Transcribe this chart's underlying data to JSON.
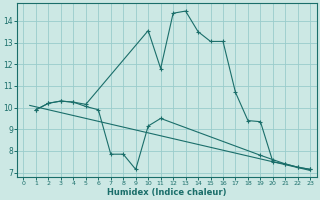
{
  "xlabel": "Humidex (Indice chaleur)",
  "bg_color": "#cce8e4",
  "grid_color": "#99cccc",
  "line_color": "#1a6e6a",
  "xlim": [
    -0.5,
    23.5
  ],
  "ylim": [
    6.8,
    14.8
  ],
  "yticks": [
    7,
    8,
    9,
    10,
    11,
    12,
    13,
    14
  ],
  "xticks": [
    0,
    1,
    2,
    3,
    4,
    5,
    6,
    7,
    8,
    9,
    10,
    11,
    12,
    13,
    14,
    15,
    16,
    17,
    18,
    19,
    20,
    21,
    22,
    23
  ],
  "curve1_x": [
    1,
    2,
    3,
    4,
    5,
    10,
    11,
    12,
    13,
    14,
    15,
    16,
    17,
    18,
    19,
    20,
    21,
    22,
    23
  ],
  "curve1_y": [
    9.9,
    10.2,
    10.3,
    10.25,
    10.15,
    13.55,
    11.8,
    14.35,
    14.45,
    13.5,
    13.05,
    13.05,
    10.7,
    9.4,
    9.35,
    7.5,
    7.4,
    7.25,
    7.15
  ],
  "curve2_x": [
    1,
    2,
    3,
    4,
    5,
    6,
    7,
    8,
    9,
    10,
    11,
    19,
    20,
    21,
    22,
    23
  ],
  "curve2_y": [
    9.9,
    10.2,
    10.3,
    10.25,
    10.05,
    9.9,
    7.85,
    7.85,
    7.15,
    9.15,
    9.5,
    7.8,
    7.6,
    7.4,
    7.25,
    7.15
  ],
  "trend_x": [
    0.5,
    23
  ],
  "trend_y": [
    10.1,
    7.1
  ]
}
